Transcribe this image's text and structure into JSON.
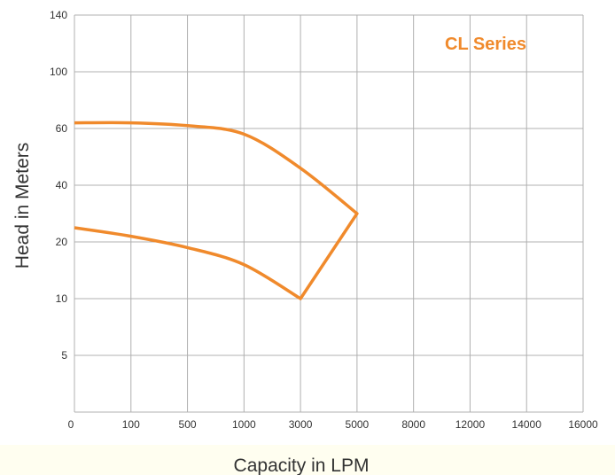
{
  "colors": {
    "curve": "#F08A2C",
    "grid": "#b0b0b0",
    "text": "#333333"
  },
  "chart_data": {
    "type": "line",
    "title": "",
    "annotation": "CL Series",
    "xlabel": "Capacity in LPM",
    "ylabel": "Head in Meters",
    "x_ticks": [
      "0",
      "100",
      "500",
      "1000",
      "3000",
      "5000",
      "8000",
      "12000",
      "14000",
      "16000"
    ],
    "y_ticks": [
      "140",
      "100",
      "60",
      "40",
      "20",
      "10",
      "5"
    ],
    "x_scale": "categorical-ordinal",
    "y_scale": "categorical-ordinal",
    "grid": true,
    "series": [
      {
        "x": [
          0,
          100,
          500,
          1000,
          3000,
          5000,
          3000,
          1000,
          500,
          100,
          0
        ],
        "y": [
          64,
          64,
          62,
          58,
          46,
          30,
          10,
          16,
          19,
          22,
          25
        ]
      }
    ]
  }
}
